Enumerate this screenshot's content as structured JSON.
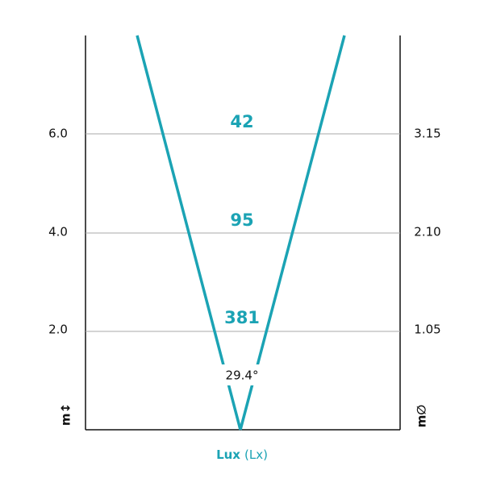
{
  "distance_axis": {
    "unit": "m↕",
    "ticks": [
      "2.0",
      "4.0",
      "6.0"
    ]
  },
  "diameter_axis": {
    "unit": "m∅",
    "ticks": [
      "1.05",
      "2.10",
      "3.15"
    ]
  },
  "lux_values": [
    "381",
    "95",
    "42"
  ],
  "beam_angle": "29.4°",
  "footer": {
    "label": "Lux",
    "unit": "(Lx)"
  }
}
